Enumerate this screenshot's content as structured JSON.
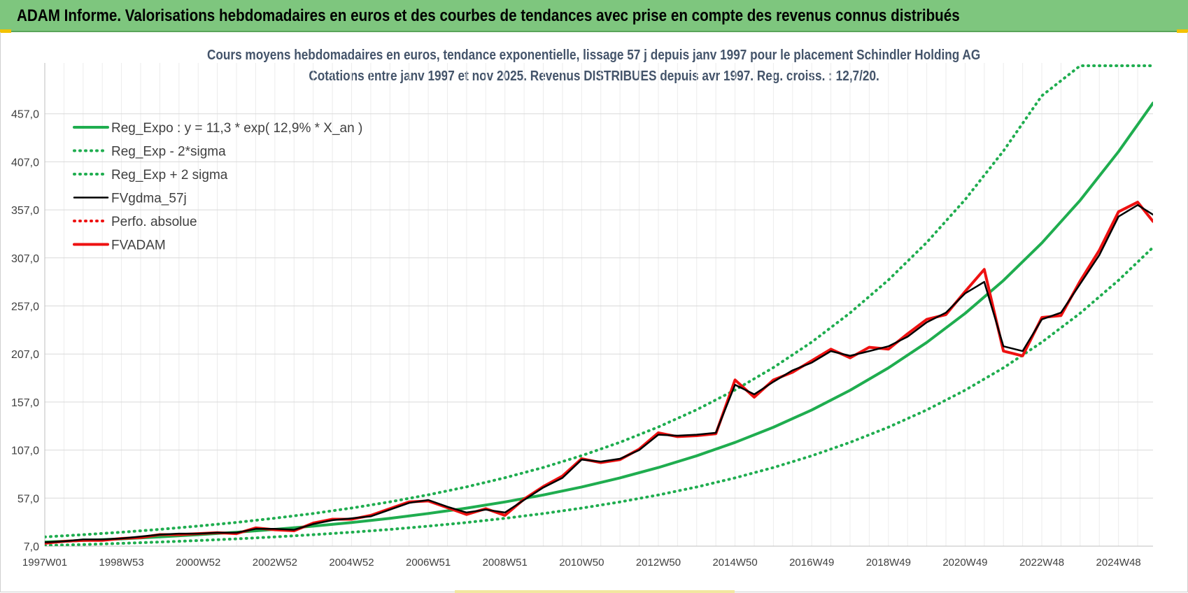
{
  "header": {
    "title": "ADAM Informe. Valorisations hebdomadaires en euros et des courbes de tendances avec prise en compte des revenus connus distribués"
  },
  "colors": {
    "banner": "#7ec67e",
    "trend": "#1fad4f",
    "smoothed": "#000000",
    "adam": "#ee1111",
    "axis_text": "#404040"
  },
  "chart_data": {
    "type": "line",
    "title": "Cours moyens hebdomadaires en euros, tendance exponentielle, lissage 57 j depuis janv 1997 pour le placement Schindler Holding AG",
    "subtitle": "Cotations entre janv 1997 et nov 2025. Revenus DISTRIBUES depuis avr 1997. Reg. croiss. : 12,7/20.",
    "xlabel": "",
    "ylabel": "",
    "x_range": [
      1997.0,
      2025.9
    ],
    "ylim": [
      7,
      507
    ],
    "y_ticks": [
      "7,0",
      "57,0",
      "107,0",
      "157,0",
      "207,0",
      "257,0",
      "307,0",
      "357,0",
      "407,0",
      "457,0"
    ],
    "y_tick_values": [
      7,
      57,
      107,
      157,
      207,
      257,
      307,
      357,
      407,
      457
    ],
    "x_ticks": [
      "1997W01",
      "1998W53",
      "2000W52",
      "2002W52",
      "2004W52",
      "2006W51",
      "2008W51",
      "2010W50",
      "2012W50",
      "2014W50",
      "2016W49",
      "2018W49",
      "2020W49",
      "2022W48",
      "2024W48"
    ],
    "x_tick_values": [
      1997.0,
      1999.0,
      2001.0,
      2003.0,
      2005.0,
      2007.0,
      2009.0,
      2011.0,
      2013.0,
      2015.0,
      2017.0,
      2019.0,
      2021.0,
      2023.0,
      2025.0
    ],
    "legend": {
      "position": "top-left",
      "entries": [
        {
          "label": "Reg_Expo : y = 11,3 * exp( 12,9% *  X_an )",
          "style": "solid-thick",
          "color": "#1fad4f"
        },
        {
          "label": "Reg_Exp - 2*sigma",
          "style": "dotted",
          "color": "#1fad4f"
        },
        {
          "label": "Reg_Exp + 2 sigma",
          "style": "dotted",
          "color": "#1fad4f"
        },
        {
          "label": "FVgdma_57j",
          "style": "solid",
          "color": "#000000"
        },
        {
          "label": "Perfo. absolue",
          "style": "dotted",
          "color": "#ee1111"
        },
        {
          "label": "FVADAM",
          "style": "solid-thick",
          "color": "#ee1111"
        }
      ]
    },
    "series": [
      {
        "name": "Reg_Expo : y = 11,3 * exp( 12,9% *  X_an )",
        "x": [
          1997,
          1998,
          1999,
          2000,
          2001,
          2002,
          2003,
          2004,
          2005,
          2006,
          2007,
          2008,
          2009,
          2010,
          2011,
          2012,
          2013,
          2014,
          2015,
          2016,
          2017,
          2018,
          2019,
          2020,
          2021,
          2022,
          2023,
          2024,
          2025,
          2025.9
        ],
        "values": [
          11.3,
          12.9,
          14.6,
          16.6,
          18.9,
          21.5,
          24.5,
          27.8,
          31.6,
          36.0,
          41.0,
          46.6,
          53.0,
          60.3,
          68.6,
          78.0,
          88.8,
          101.0,
          114.9,
          130.7,
          148.7,
          169.2,
          192.5,
          219.0,
          249.2,
          283.5,
          322.6,
          367.0,
          417.6,
          468.2
        ]
      },
      {
        "name": "Reg_Exp - 2*sigma",
        "x": [
          1997,
          1998,
          1999,
          2000,
          2001,
          2002,
          2003,
          2004,
          2005,
          2006,
          2007,
          2008,
          2009,
          2010,
          2011,
          2012,
          2013,
          2014,
          2015,
          2016,
          2017,
          2018,
          2019,
          2020,
          2021,
          2022,
          2023,
          2024,
          2025,
          2025.9
        ],
        "values": [
          7.7,
          8.7,
          9.9,
          11.3,
          12.8,
          14.6,
          16.6,
          18.9,
          21.5,
          24.4,
          27.8,
          31.6,
          36.0,
          40.9,
          46.6,
          53.0,
          60.3,
          68.6,
          78.0,
          88.8,
          101.0,
          115.0,
          130.8,
          148.8,
          169.3,
          192.6,
          219.2,
          249.4,
          283.7,
          318.0
        ]
      },
      {
        "name": "Reg_Exp + 2 sigma",
        "x": [
          1997,
          1998,
          1999,
          2000,
          2001,
          2002,
          2003,
          2004,
          2005,
          2006,
          2007,
          2008,
          2009,
          2010,
          2011,
          2012,
          2013,
          2014,
          2015,
          2016,
          2017,
          2018,
          2019,
          2020,
          2021,
          2022,
          2023,
          2024,
          2025,
          2025.9
        ],
        "values": [
          16.6,
          18.9,
          21.5,
          24.5,
          27.9,
          31.7,
          36.1,
          41.0,
          46.7,
          53.1,
          60.4,
          68.7,
          78.2,
          88.9,
          101.2,
          115.1,
          131.0,
          149.0,
          169.5,
          192.9,
          219.4,
          249.7,
          284.0,
          323.1,
          367.6,
          418.3,
          475.8,
          507.0,
          507.0,
          507.0
        ]
      },
      {
        "name": "FVgdma_57j",
        "x": [
          1997.0,
          1997.5,
          1998.0,
          1998.5,
          1999.0,
          1999.5,
          2000.0,
          2000.5,
          2001.0,
          2001.5,
          2002.0,
          2002.5,
          2003.0,
          2003.5,
          2004.0,
          2004.5,
          2005.0,
          2005.5,
          2006.0,
          2006.5,
          2007.0,
          2007.5,
          2008.0,
          2008.5,
          2009.0,
          2009.5,
          2010.0,
          2010.5,
          2011.0,
          2011.5,
          2012.0,
          2012.5,
          2013.0,
          2013.5,
          2014.0,
          2014.5,
          2015.0,
          2015.5,
          2016.0,
          2016.5,
          2017.0,
          2017.5,
          2018.0,
          2018.5,
          2019.0,
          2019.5,
          2020.0,
          2020.5,
          2021.0,
          2021.5,
          2022.0,
          2022.5,
          2023.0,
          2023.5,
          2024.0,
          2024.5,
          2025.0,
          2025.5,
          2025.9
        ],
        "values": [
          11,
          12,
          14,
          14,
          15,
          17,
          19,
          20,
          20,
          21,
          21,
          25,
          25,
          24,
          30,
          34,
          36,
          38,
          45,
          52,
          55,
          48,
          42,
          45,
          42,
          55,
          68,
          78,
          97,
          95,
          98,
          107,
          123,
          122,
          123,
          125,
          175,
          165,
          178,
          190,
          198,
          210,
          205,
          210,
          215,
          225,
          240,
          250,
          270,
          282,
          215,
          210,
          243,
          250,
          280,
          310,
          350,
          362,
          352
        ]
      },
      {
        "name": "FVADAM",
        "x": [
          1997.0,
          1997.5,
          1998.0,
          1998.5,
          1999.0,
          1999.5,
          2000.0,
          2000.5,
          2001.0,
          2001.5,
          2002.0,
          2002.5,
          2003.0,
          2003.5,
          2004.0,
          2004.5,
          2005.0,
          2005.5,
          2006.0,
          2006.5,
          2007.0,
          2007.5,
          2008.0,
          2008.5,
          2009.0,
          2009.5,
          2010.0,
          2010.5,
          2011.0,
          2011.5,
          2012.0,
          2012.5,
          2013.0,
          2013.5,
          2014.0,
          2014.5,
          2015.0,
          2015.5,
          2016.0,
          2016.5,
          2017.0,
          2017.5,
          2018.0,
          2018.5,
          2019.0,
          2019.5,
          2020.0,
          2020.5,
          2021.0,
          2021.5,
          2022.0,
          2022.5,
          2023.0,
          2023.5,
          2024.0,
          2024.5,
          2025.0,
          2025.5,
          2025.9
        ],
        "values": [
          10,
          12,
          13,
          13,
          15,
          16,
          19,
          19,
          20,
          21,
          20,
          26,
          24,
          23,
          31,
          35,
          35,
          39,
          46,
          53,
          54,
          47,
          40,
          46,
          39,
          56,
          69,
          80,
          98,
          94,
          97,
          108,
          125,
          121,
          122,
          124,
          180,
          162,
          180,
          188,
          200,
          212,
          203,
          214,
          212,
          228,
          243,
          248,
          272,
          295,
          210,
          205,
          245,
          247,
          283,
          315,
          355,
          365,
          345
        ]
      }
    ]
  }
}
